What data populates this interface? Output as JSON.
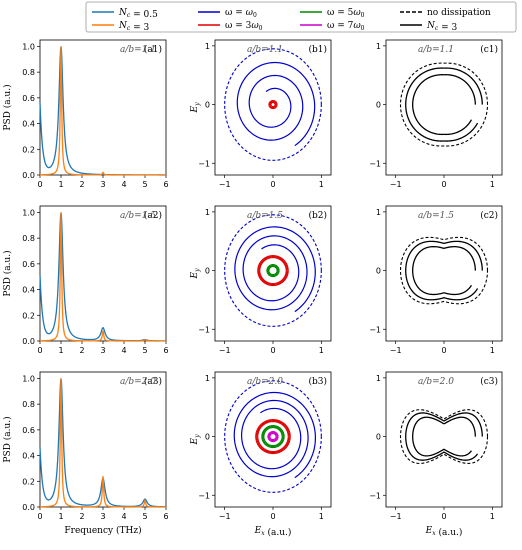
{
  "colors": {
    "psd_nc05": "#1f77b4",
    "psd_nc3": "#ff7f0e",
    "w1": "#0000cc",
    "w3": "#e00000",
    "w5": "#008800",
    "w7": "#cc00cc",
    "black": "#000000"
  },
  "legend": {
    "items": [
      {
        "label": "N_c = 0.5",
        "color": "#1f77b4",
        "style": "solid"
      },
      {
        "label": "N_c = 3",
        "color": "#ff7f0e",
        "style": "solid"
      },
      {
        "label": "ω = ω0",
        "color": "#0000cc",
        "style": "solid"
      },
      {
        "label": "ω = 3ω0",
        "color": "#e00000",
        "style": "solid"
      },
      {
        "label": "ω = 5ω0",
        "color": "#008800",
        "style": "solid"
      },
      {
        "label": "ω = 7ω0",
        "color": "#cc00cc",
        "style": "solid"
      },
      {
        "label": "no dissipation",
        "color": "#000000",
        "style": "dashed"
      },
      {
        "label": "N_c = 3",
        "color": "#000000",
        "style": "solid"
      }
    ]
  },
  "labels": {
    "psd_ylabel": "PSD (a.u.)",
    "freq_xlabel": "Frequency (THz)",
    "ey_label": "E_y",
    "ex_label": "E_x (a.u.)"
  },
  "rows": [
    {
      "ratio": "a/b=1.1",
      "panels": [
        "(a1)",
        "(b1)",
        "(c1)"
      ]
    },
    {
      "ratio": "a/b=1.5",
      "panels": [
        "(a2)",
        "(b2)",
        "(c2)"
      ]
    },
    {
      "ratio": "a/b=2.0",
      "panels": [
        "(a3)",
        "(b3)",
        "(c3)"
      ]
    }
  ],
  "chart_data": [
    {
      "type": "line",
      "panel": "a",
      "xlabel": "Frequency (THz)",
      "ylabel": "PSD (a.u.)",
      "xlim": [
        0,
        6
      ],
      "ylim": [
        0,
        1.05
      ],
      "xticks": [
        0,
        1,
        2,
        3,
        4,
        5,
        6
      ],
      "yticks": [
        0.0,
        0.2,
        0.4,
        0.6,
        0.8,
        1.0
      ],
      "series": [
        {
          "name": "N_c = 0.5",
          "peaks": [
            {
              "f": 1,
              "a": 1.0
            },
            {
              "f": 3,
              "a": 0.0
            },
            {
              "f": 5,
              "a": 0.0
            }
          ],
          "row": 1,
          "width": 0.12,
          "dc": 0.55
        },
        {
          "name": "N_c = 3",
          "peaks": [
            {
              "f": 1,
              "a": 1.0
            },
            {
              "f": 3,
              "a": 0.02
            },
            {
              "f": 5,
              "a": 0.0
            }
          ],
          "row": 1,
          "width": 0.04,
          "dc": 0.0
        },
        {
          "name": "N_c = 0.5",
          "peaks": [
            {
              "f": 1,
              "a": 1.0
            },
            {
              "f": 3,
              "a": 0.1
            },
            {
              "f": 5,
              "a": 0.01
            }
          ],
          "row": 2,
          "width": 0.12,
          "dc": 0.5
        },
        {
          "name": "N_c = 3",
          "peaks": [
            {
              "f": 1,
              "a": 1.0
            },
            {
              "f": 3,
              "a": 0.08
            },
            {
              "f": 5,
              "a": 0.01
            }
          ],
          "row": 2,
          "width": 0.04,
          "dc": 0.0
        },
        {
          "name": "N_c = 0.5",
          "peaks": [
            {
              "f": 1,
              "a": 1.0
            },
            {
              "f": 3,
              "a": 0.22
            },
            {
              "f": 5,
              "a": 0.06
            }
          ],
          "row": 3,
          "width": 0.12,
          "dc": 0.45
        },
        {
          "name": "N_c = 3",
          "peaks": [
            {
              "f": 1,
              "a": 1.0
            },
            {
              "f": 3,
              "a": 0.24
            },
            {
              "f": 5,
              "a": 0.05
            }
          ],
          "row": 3,
          "width": 0.04,
          "dc": 0.0
        }
      ]
    },
    {
      "type": "line",
      "panel": "b",
      "xlabel": "E_x (a.u.)",
      "ylabel": "E_y",
      "xlim": [
        -1.2,
        1.2
      ],
      "ylim": [
        -1.2,
        1.1
      ],
      "xticks": [
        -1,
        0,
        1
      ],
      "yticks": [
        -1,
        0,
        1
      ],
      "rows": [
        {
          "row": 1,
          "dashed_rx": 1.0,
          "dashed_ry": 0.95,
          "spiral_start": 0.95,
          "spiral_end": 0.3,
          "harmonics": [
            {
              "r": 0.06,
              "color": "w3"
            }
          ]
        },
        {
          "row": 2,
          "dashed_rx": 1.0,
          "dashed_ry": 0.95,
          "spiral_start": 0.95,
          "spiral_end": 0.5,
          "harmonics": [
            {
              "r": 0.28,
              "color": "w3"
            },
            {
              "r": 0.1,
              "color": "w5"
            }
          ]
        },
        {
          "row": 3,
          "dashed_rx": 1.0,
          "dashed_ry": 0.95,
          "spiral_start": 0.95,
          "spiral_end": 0.55,
          "harmonics": [
            {
              "r": 0.32,
              "color": "w3"
            },
            {
              "r": 0.2,
              "color": "w5"
            },
            {
              "r": 0.08,
              "color": "w7"
            }
          ]
        }
      ]
    },
    {
      "type": "line",
      "panel": "c",
      "xlabel": "E_x (a.u.)",
      "xlim": [
        -1.2,
        1.2
      ],
      "ylim": [
        -1.2,
        1.1
      ],
      "xticks": [
        -1,
        0,
        1
      ],
      "yticks": [
        -1,
        0,
        1
      ],
      "rows": [
        {
          "row": 1,
          "ratio": 1.1
        },
        {
          "row": 2,
          "ratio": 1.5
        },
        {
          "row": 3,
          "ratio": 2.0
        }
      ]
    }
  ]
}
